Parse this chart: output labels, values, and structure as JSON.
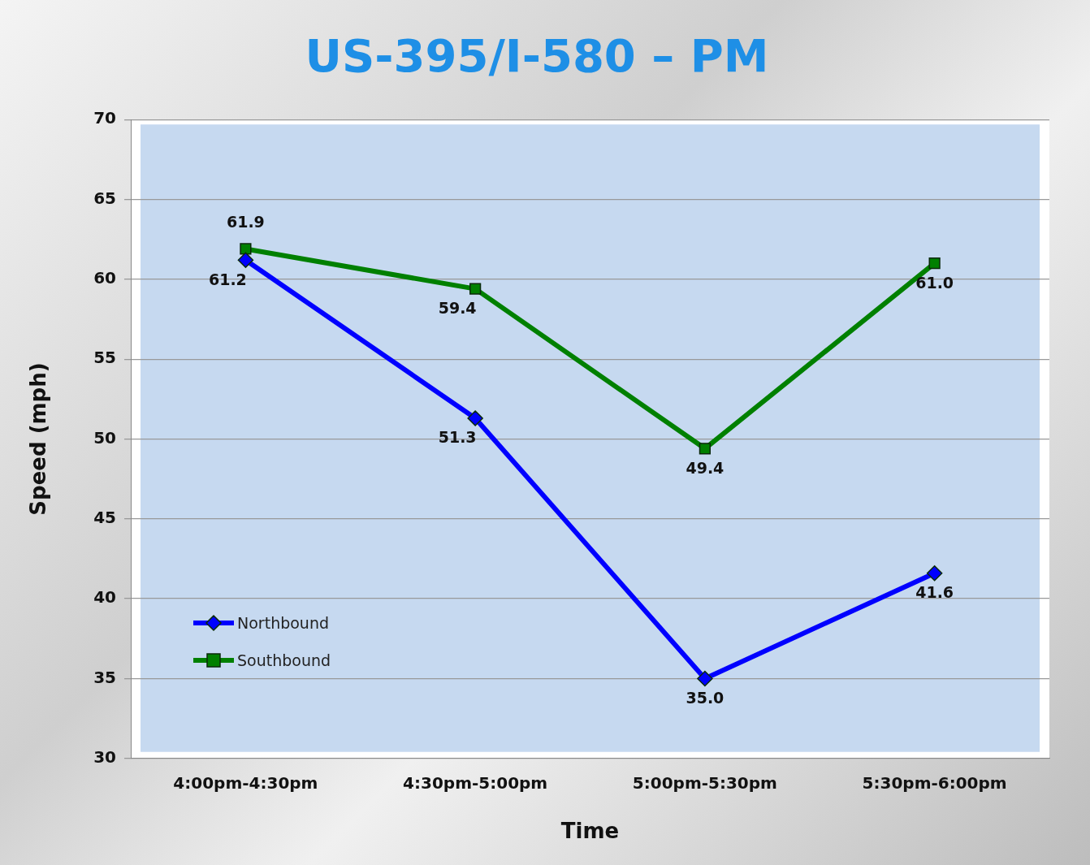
{
  "chart_data": {
    "type": "line",
    "title": "US-395/I-580 – PM",
    "xlabel": "Time",
    "ylabel": "Speed (mph)",
    "categories": [
      "4:00pm-4:30pm",
      "4:30pm-5:00pm",
      "5:00pm-5:30pm",
      "5:30pm-6:00pm"
    ],
    "series": [
      {
        "name": "Northbound",
        "color": "#0000ff",
        "marker": "diamond",
        "values": [
          61.2,
          51.3,
          35.0,
          41.6
        ],
        "value_labels": [
          "61.2",
          "51.3",
          "35.0",
          "41.6"
        ]
      },
      {
        "name": "Southbound",
        "color": "#008000",
        "marker": "square",
        "values": [
          61.9,
          59.4,
          49.4,
          61.0
        ],
        "value_labels": [
          "61.9",
          "59.4",
          "49.4",
          "61.0"
        ]
      }
    ],
    "ylim": [
      30,
      70
    ],
    "yticks": [
      30,
      35,
      40,
      45,
      50,
      55,
      60,
      65,
      70
    ],
    "grid": "y",
    "legend": "bottom left"
  }
}
